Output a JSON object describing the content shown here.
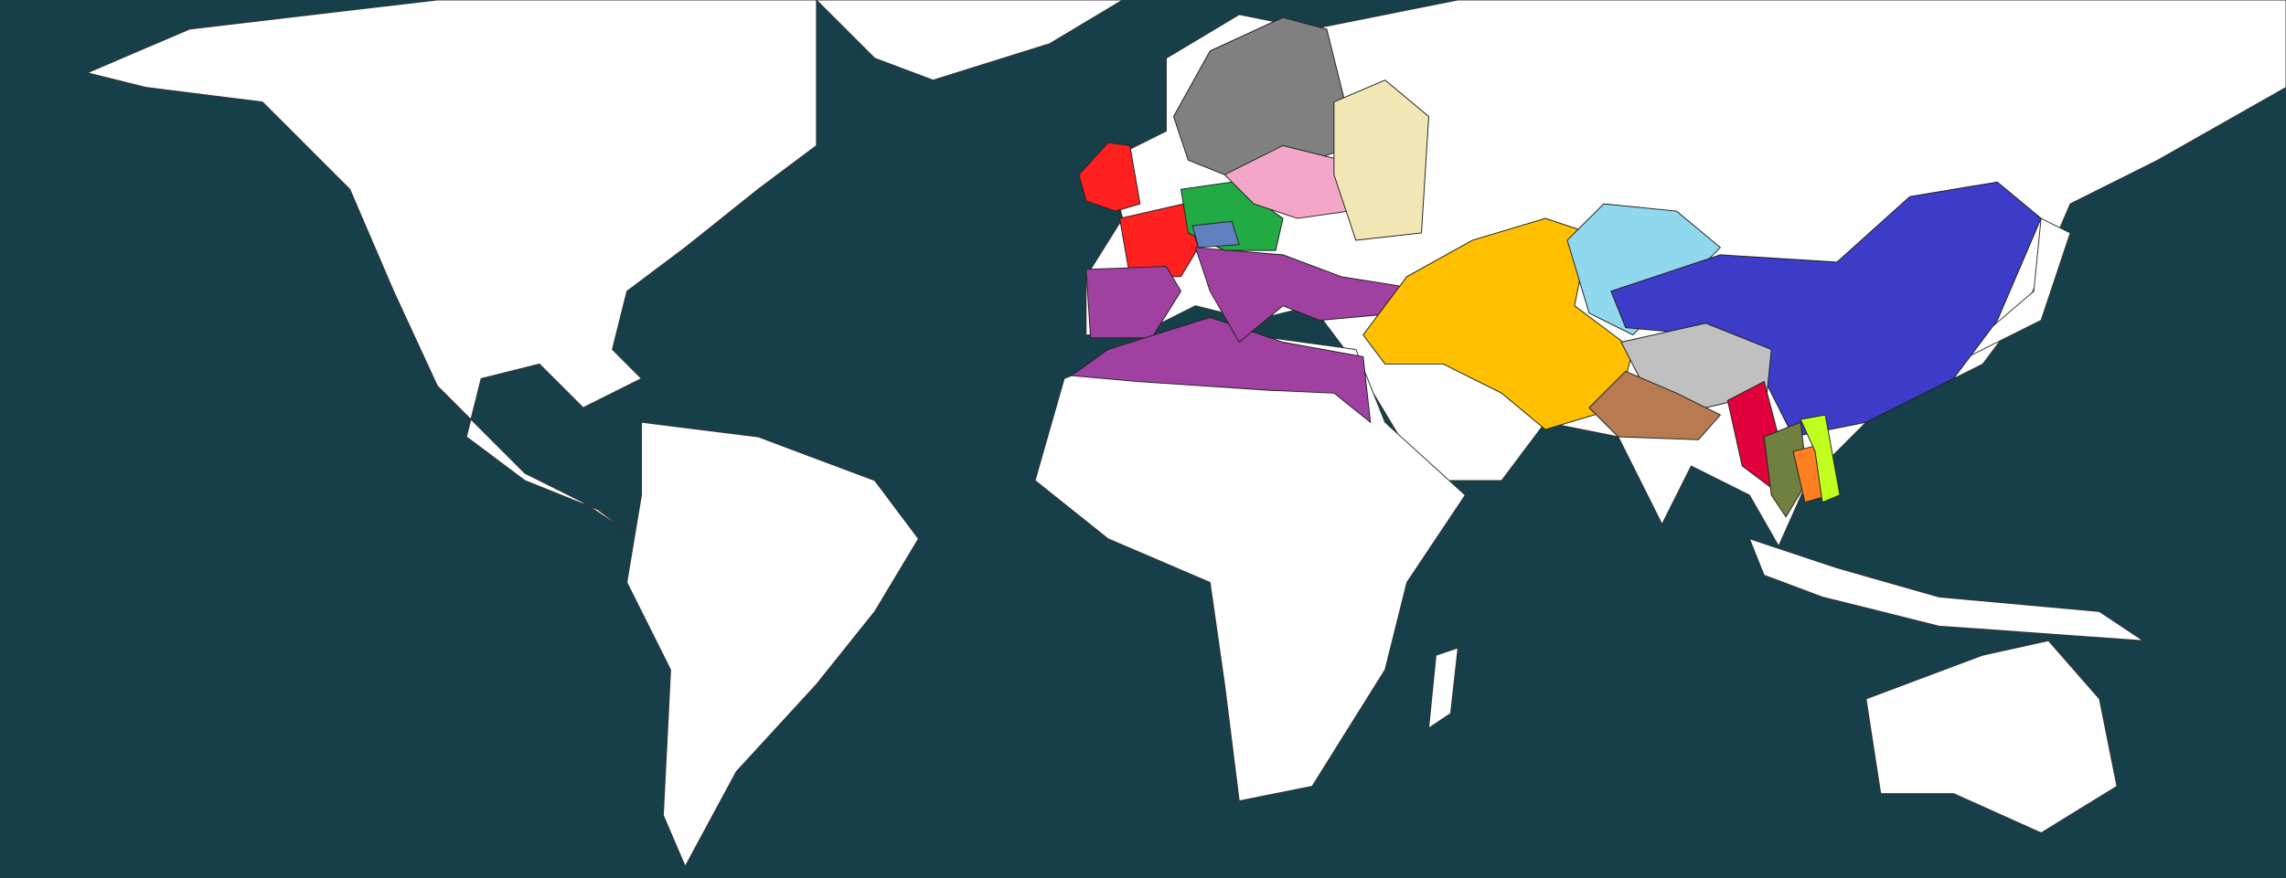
{
  "map": {
    "ocean_color": "#173f4a",
    "land_color": "#ffffff",
    "border_color": "#333333"
  },
  "factions": [
    {
      "id": "british-isles-france",
      "color": "#ff2020"
    },
    {
      "id": "mediterranean",
      "color": "#a040a0"
    },
    {
      "id": "scandinavia",
      "color": "#808080"
    },
    {
      "id": "germany",
      "color": "#22aa44"
    },
    {
      "id": "alps",
      "color": "#6080c0"
    },
    {
      "id": "poland",
      "color": "#f4a6c8"
    },
    {
      "id": "russia-west",
      "color": "#f2e6b4"
    },
    {
      "id": "persia",
      "color": "#ffc000"
    },
    {
      "id": "central-asia",
      "color": "#90d8ee"
    },
    {
      "id": "china",
      "color": "#3c3cc8"
    },
    {
      "id": "tibet",
      "color": "#c0c0c0"
    },
    {
      "id": "north-india",
      "color": "#b87a50"
    },
    {
      "id": "burma",
      "color": "#e0003c"
    },
    {
      "id": "siam",
      "color": "#708040"
    },
    {
      "id": "cambodia",
      "color": "#ff8020"
    },
    {
      "id": "vietnam",
      "color": "#c0ff20"
    }
  ]
}
